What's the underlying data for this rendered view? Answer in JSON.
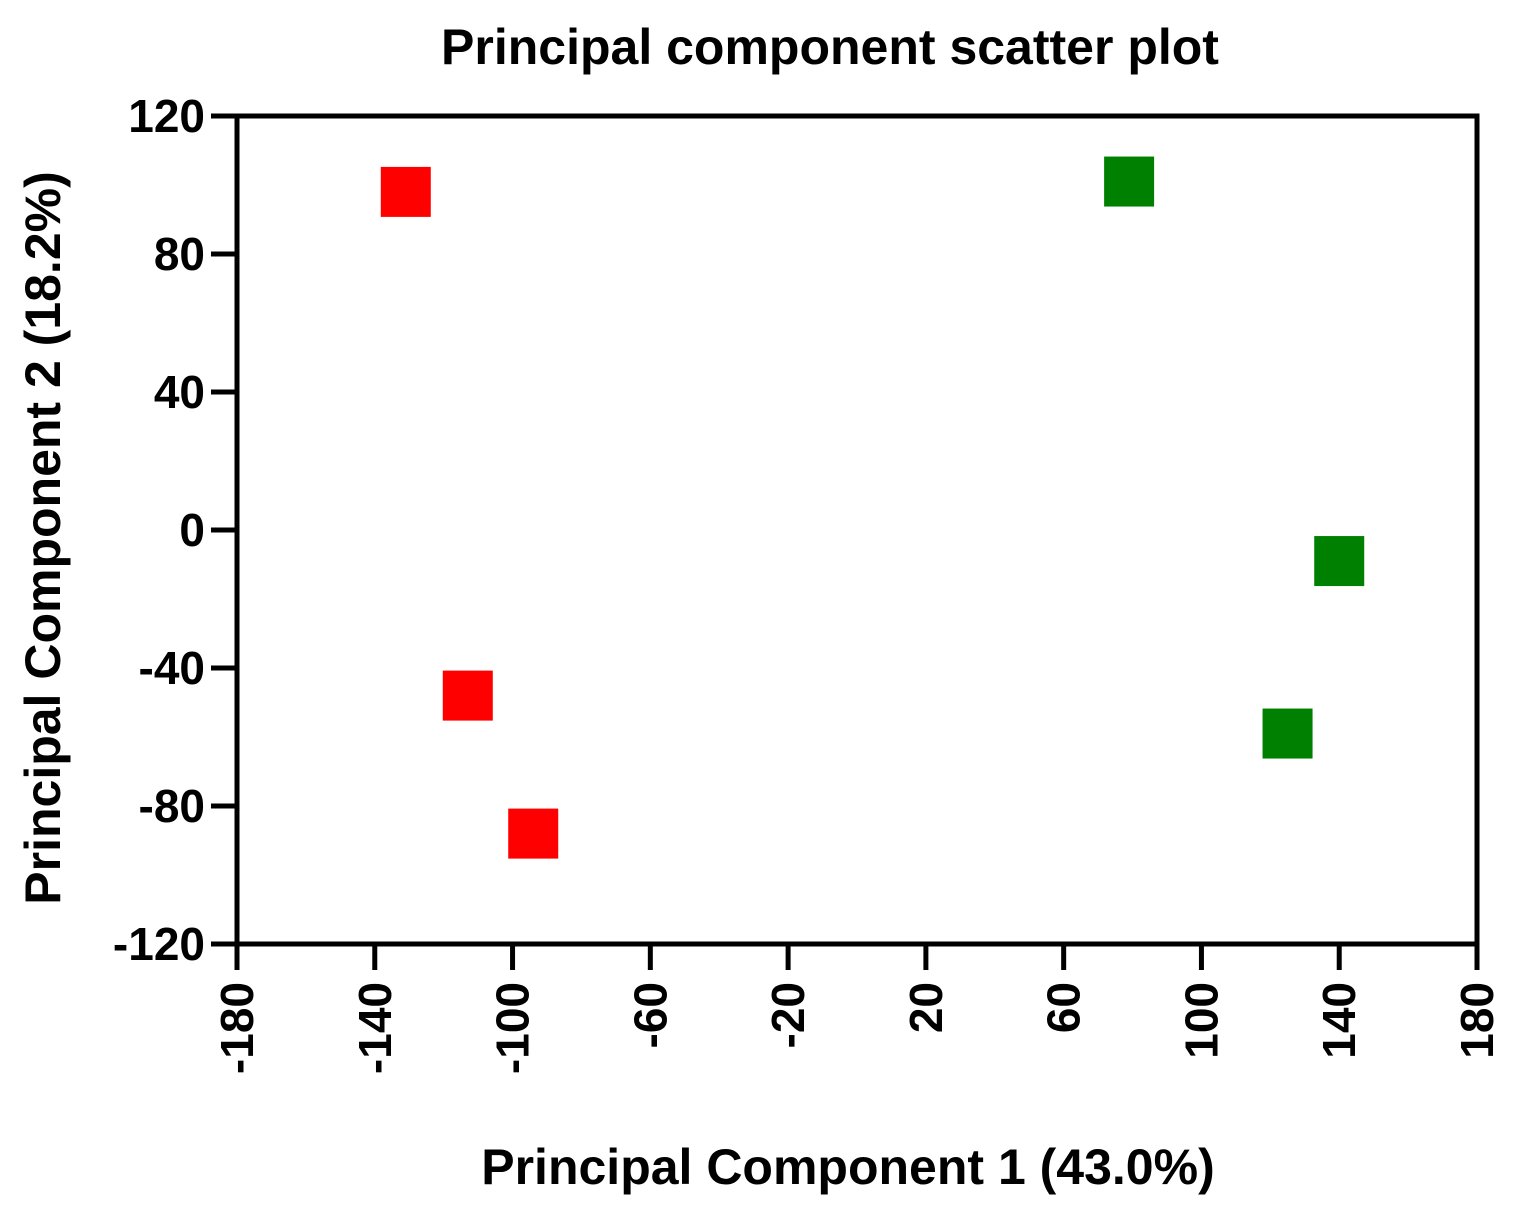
{
  "chart_data": {
    "type": "scatter",
    "title": "Principal component scatter plot",
    "xlabel": "Principal Component 1 (43.0%)",
    "ylabel": "Principal Component 2 (18.2%)",
    "xlim": [
      -180,
      180
    ],
    "ylim": [
      -120,
      120
    ],
    "xticks": [
      -180,
      -140,
      -100,
      -60,
      -20,
      20,
      60,
      100,
      140,
      180
    ],
    "yticks": [
      120,
      80,
      40,
      0,
      -40,
      -80,
      -120
    ],
    "xtick_labels": [
      "-180",
      "-140",
      "-100",
      "-60",
      "-20",
      "20",
      "60",
      "100",
      "140",
      "180"
    ],
    "ytick_labels": [
      "120",
      "80",
      "40",
      "0",
      "-40",
      "-80",
      "-120"
    ],
    "grid": false,
    "marker": "square",
    "series": [
      {
        "color": "#ff0000",
        "points": [
          {
            "x": -131,
            "y": 98
          },
          {
            "x": -113,
            "y": -48
          },
          {
            "x": -94,
            "y": -88
          }
        ]
      },
      {
        "color": "#008000",
        "points": [
          {
            "x": 79,
            "y": 101
          },
          {
            "x": 140,
            "y": -9
          },
          {
            "x": 125,
            "y": -59
          }
        ]
      }
    ]
  }
}
